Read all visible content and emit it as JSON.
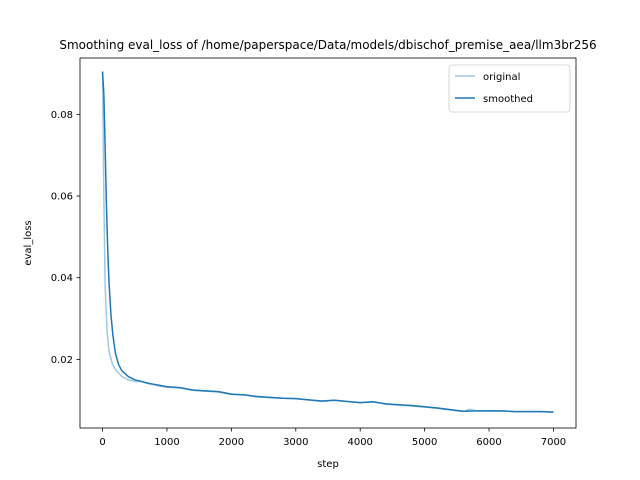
{
  "chart_data": {
    "type": "line",
    "title": "Smoothing eval_loss of /home/paperspace/Data/models/dbischof_premise_aea/llm3br256",
    "xlabel": "step",
    "ylabel": "eval_loss",
    "xlim": [
      -350,
      7350
    ],
    "ylim": [
      0.0032,
      0.0938
    ],
    "xticks": [
      0,
      1000,
      2000,
      3000,
      4000,
      5000,
      6000,
      7000
    ],
    "yticks": [
      0.02,
      0.04,
      0.06,
      0.08
    ],
    "xtick_labels": [
      "0",
      "1000",
      "2000",
      "3000",
      "4000",
      "5000",
      "6000",
      "7000"
    ],
    "ytick_labels": [
      "0.02",
      "0.04",
      "0.06",
      "0.08"
    ],
    "grid": false,
    "legend_position": "top-right",
    "series": [
      {
        "name": "original",
        "color": "#9ecae1",
        "x": [
          0,
          20,
          40,
          70,
          100,
          150,
          200,
          300,
          400,
          500,
          600,
          700,
          800,
          900,
          1000,
          1200,
          1400,
          1600,
          1800,
          2000,
          2200,
          2400,
          2600,
          2800,
          3000,
          3200,
          3400,
          3600,
          3800,
          4000,
          4200,
          4400,
          4600,
          4800,
          5000,
          5200,
          5400,
          5600,
          5700,
          5800,
          6000,
          6200,
          6400,
          6600,
          6800,
          7000
        ],
        "y": [
          0.0905,
          0.06,
          0.038,
          0.027,
          0.022,
          0.019,
          0.0175,
          0.0158,
          0.015,
          0.0146,
          0.0146,
          0.0141,
          0.0138,
          0.0134,
          0.0132,
          0.013,
          0.0124,
          0.0122,
          0.012,
          0.0114,
          0.0113,
          0.0108,
          0.0106,
          0.0105,
          0.0104,
          0.0101,
          0.0097,
          0.01,
          0.0097,
          0.0094,
          0.0097,
          0.009,
          0.0088,
          0.0086,
          0.0083,
          0.008,
          0.0076,
          0.0072,
          0.0078,
          0.0074,
          0.0073,
          0.0074,
          0.0072,
          0.0072,
          0.0072,
          0.0071
        ]
      },
      {
        "name": "smoothed",
        "color": "#1f77b4",
        "x": [
          0,
          20,
          40,
          60,
          80,
          100,
          130,
          160,
          200,
          250,
          300,
          400,
          500,
          600,
          700,
          800,
          900,
          1000,
          1200,
          1400,
          1600,
          1800,
          2000,
          2200,
          2400,
          2600,
          2800,
          3000,
          3200,
          3400,
          3600,
          3800,
          4000,
          4200,
          4400,
          4600,
          4800,
          5000,
          5200,
          5400,
          5600,
          5800,
          6000,
          6200,
          6400,
          6600,
          6800,
          7000
        ],
        "y": [
          0.0905,
          0.085,
          0.072,
          0.058,
          0.047,
          0.039,
          0.031,
          0.026,
          0.0215,
          0.0187,
          0.0172,
          0.0158,
          0.015,
          0.0146,
          0.0142,
          0.0139,
          0.0136,
          0.0133,
          0.0131,
          0.0125,
          0.0123,
          0.0121,
          0.0115,
          0.0113,
          0.0109,
          0.0107,
          0.0105,
          0.0104,
          0.0101,
          0.0098,
          0.01,
          0.0097,
          0.0094,
          0.0096,
          0.0091,
          0.0089,
          0.0087,
          0.0084,
          0.0081,
          0.0077,
          0.0073,
          0.0074,
          0.0074,
          0.0074,
          0.0072,
          0.0072,
          0.0072,
          0.0071
        ]
      }
    ]
  }
}
